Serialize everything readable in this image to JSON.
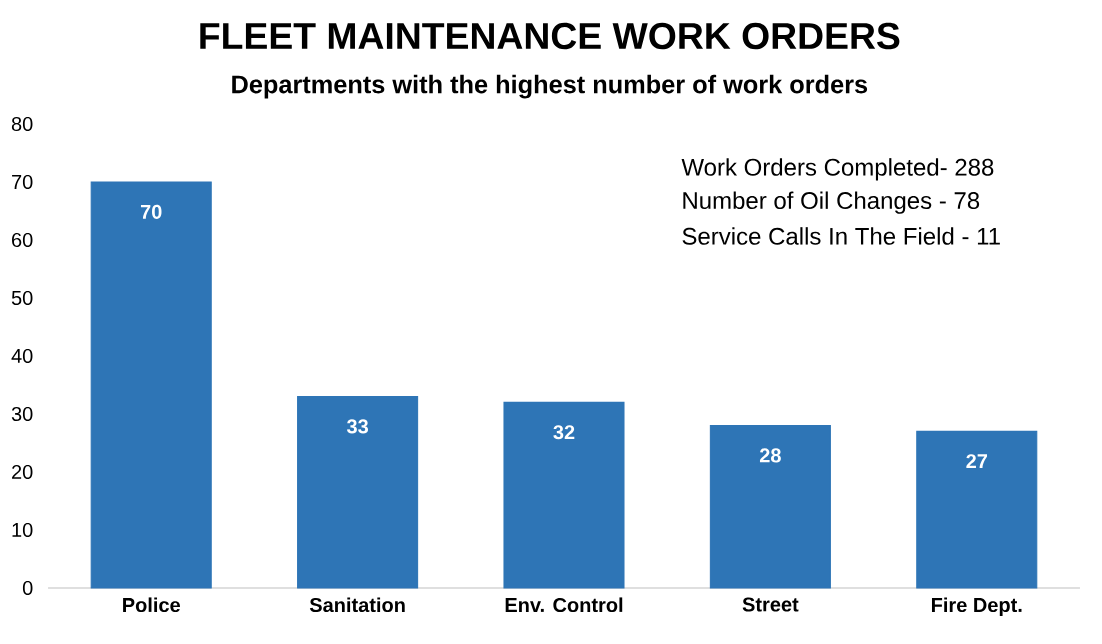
{
  "chart_data": {
    "type": "bar",
    "title": "FLEET MAINTENANCE WORK ORDERS",
    "subtitle": "Departments with the highest number of work orders",
    "categories": [
      "Police",
      "Sanitation",
      "Env. Control",
      "Street",
      "Fire Dept."
    ],
    "values": [
      70,
      33,
      32,
      28,
      27
    ],
    "color": "#2e75b6",
    "ylim": [
      0,
      80
    ],
    "yticks": [
      0,
      10,
      20,
      30,
      40,
      50,
      60,
      70,
      80
    ],
    "data_labels": true,
    "annotations": [
      "Work Orders Completed- 288",
      "Number of Oil Changes - 78",
      "Service Calls In The Field - 11"
    ]
  }
}
